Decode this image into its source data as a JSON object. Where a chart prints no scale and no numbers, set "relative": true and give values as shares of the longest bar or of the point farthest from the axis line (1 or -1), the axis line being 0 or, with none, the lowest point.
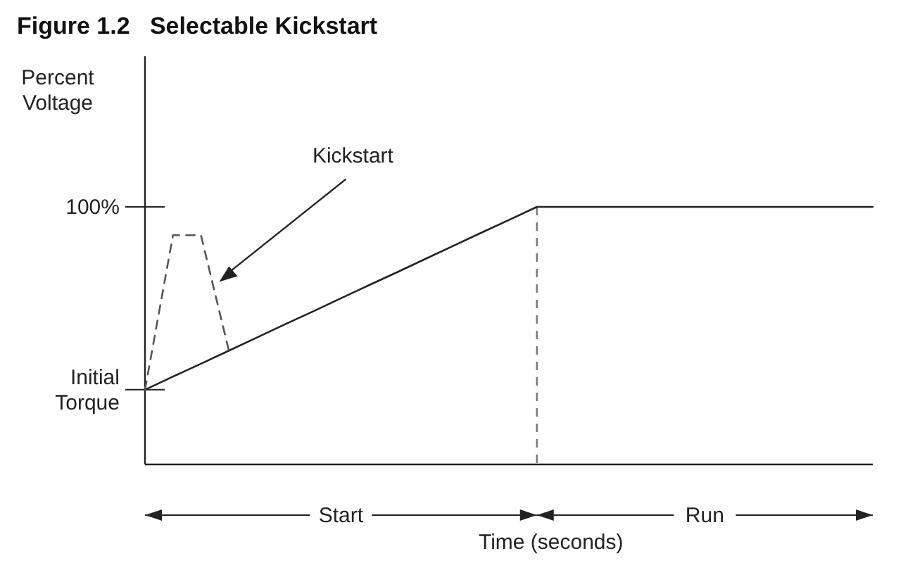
{
  "chart_data": {
    "type": "line",
    "relative": true,
    "title": "Figure 1.2   Selectable Kickstart",
    "ylabel": "Percent Voltage",
    "xlabel": "Time (seconds)",
    "categories": [
      null,
      null,
      null,
      null,
      null,
      null,
      null,
      null,
      null,
      null,
      null,
      null,
      null,
      null,
      null,
      null,
      null,
      null,
      null,
      null,
      null,
      null,
      null,
      null,
      null,
      null,
      null
    ],
    "series": [
      {
        "color": "#222222",
        "line_style": "solid",
        "values": [
          0.29,
          0.341,
          0.391,
          0.442,
          0.493,
          0.544,
          0.594,
          0.645,
          0.696,
          0.746,
          0.797,
          0.848,
          0.899,
          0.949,
          1,
          1,
          1,
          1,
          1,
          1,
          1,
          1,
          1,
          1,
          1,
          1,
          1
        ]
      },
      {
        "color": "#555555",
        "line_style": "dashed",
        "values": [
          0.29,
          0.89,
          0.89,
          0.44,
          null,
          null,
          null,
          null,
          null,
          null,
          null,
          null,
          null,
          null,
          null,
          null,
          null,
          null,
          null,
          null,
          null,
          null,
          null,
          null,
          null,
          null,
          null
        ]
      }
    ],
    "annotations": [
      "100%",
      "Initial Torque",
      "Kickstart",
      "Start",
      "Run"
    ]
  }
}
